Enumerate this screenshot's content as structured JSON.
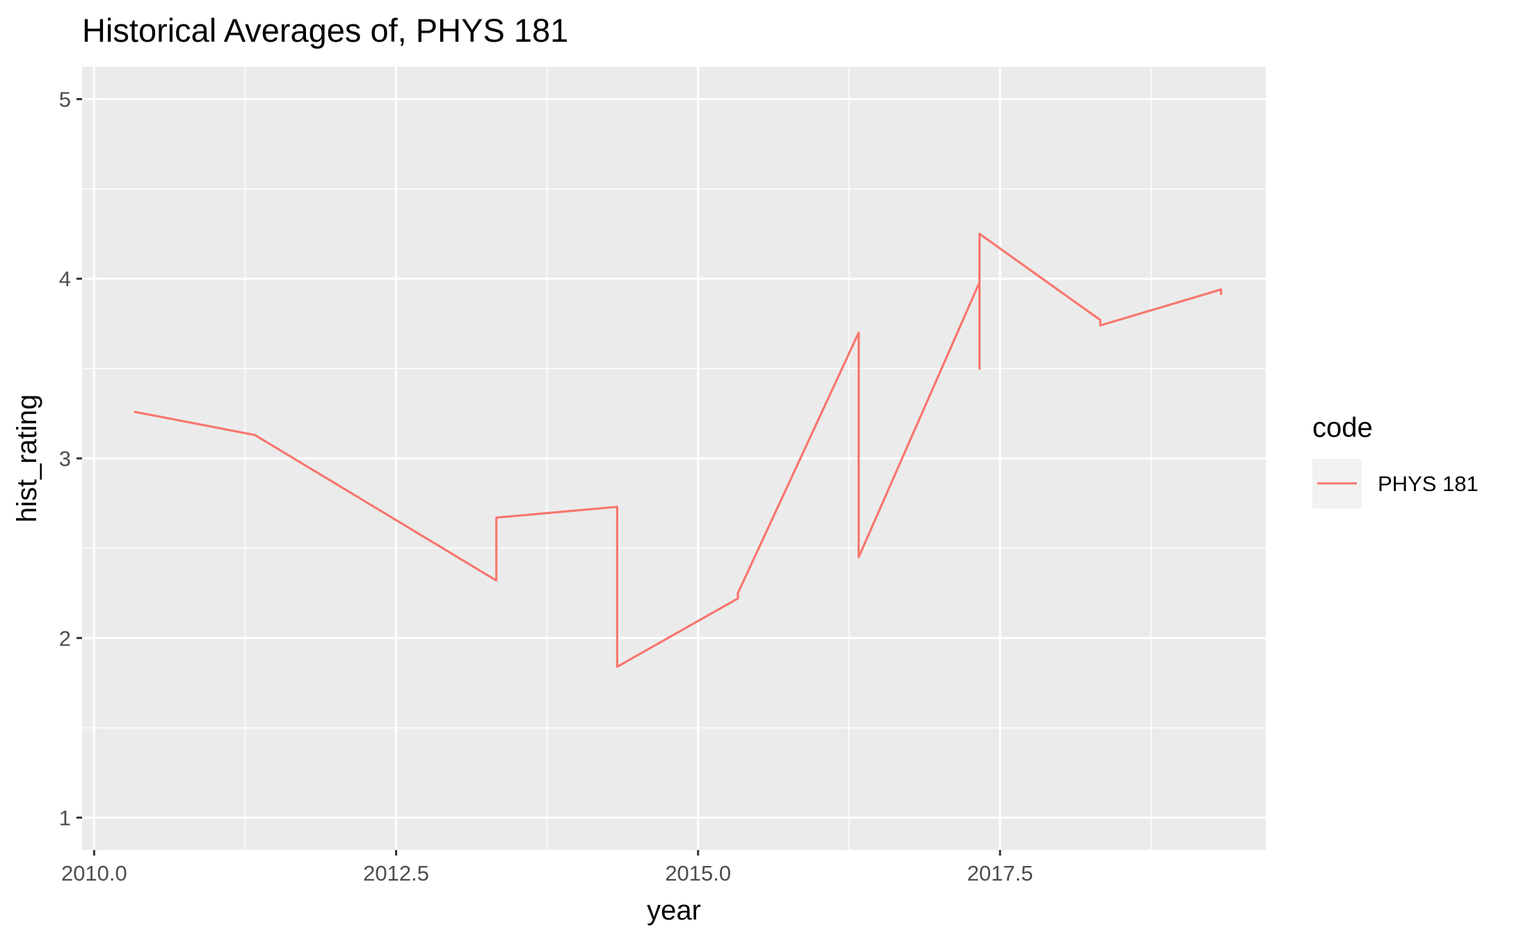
{
  "chart_data": {
    "type": "line",
    "title": "Historical Averages of, PHYS 181",
    "xlabel": "year",
    "ylabel": "hist_rating",
    "xlim": [
      2009.9,
      2019.7
    ],
    "ylim": [
      0.82,
      5.18
    ],
    "x_ticks": [
      2010.0,
      2012.5,
      2015.0,
      2017.5
    ],
    "x_tick_labels": [
      "2010.0",
      "2012.5",
      "2015.0",
      "2017.5"
    ],
    "y_ticks": [
      1,
      2,
      3,
      4,
      5
    ],
    "y_tick_labels": [
      "1",
      "2",
      "3",
      "4",
      "5"
    ],
    "grid": true,
    "legend": {
      "title": "code",
      "position": "right"
    },
    "series": [
      {
        "name": "PHYS 181",
        "color": "#F8766D",
        "x": [
          2010.33,
          2011.33,
          2013.33,
          2013.33,
          2014.33,
          2014.33,
          2015.33,
          2015.33,
          2016.33,
          2016.33,
          2016.33,
          2017.33,
          2017.33,
          2017.33,
          2018.33,
          2018.33,
          2019.33,
          2019.33
        ],
        "y": [
          3.26,
          3.13,
          2.32,
          2.67,
          2.73,
          1.84,
          2.22,
          2.25,
          3.7,
          3.0,
          2.45,
          3.98,
          3.5,
          4.25,
          3.77,
          3.74,
          3.94,
          3.91
        ]
      }
    ]
  }
}
